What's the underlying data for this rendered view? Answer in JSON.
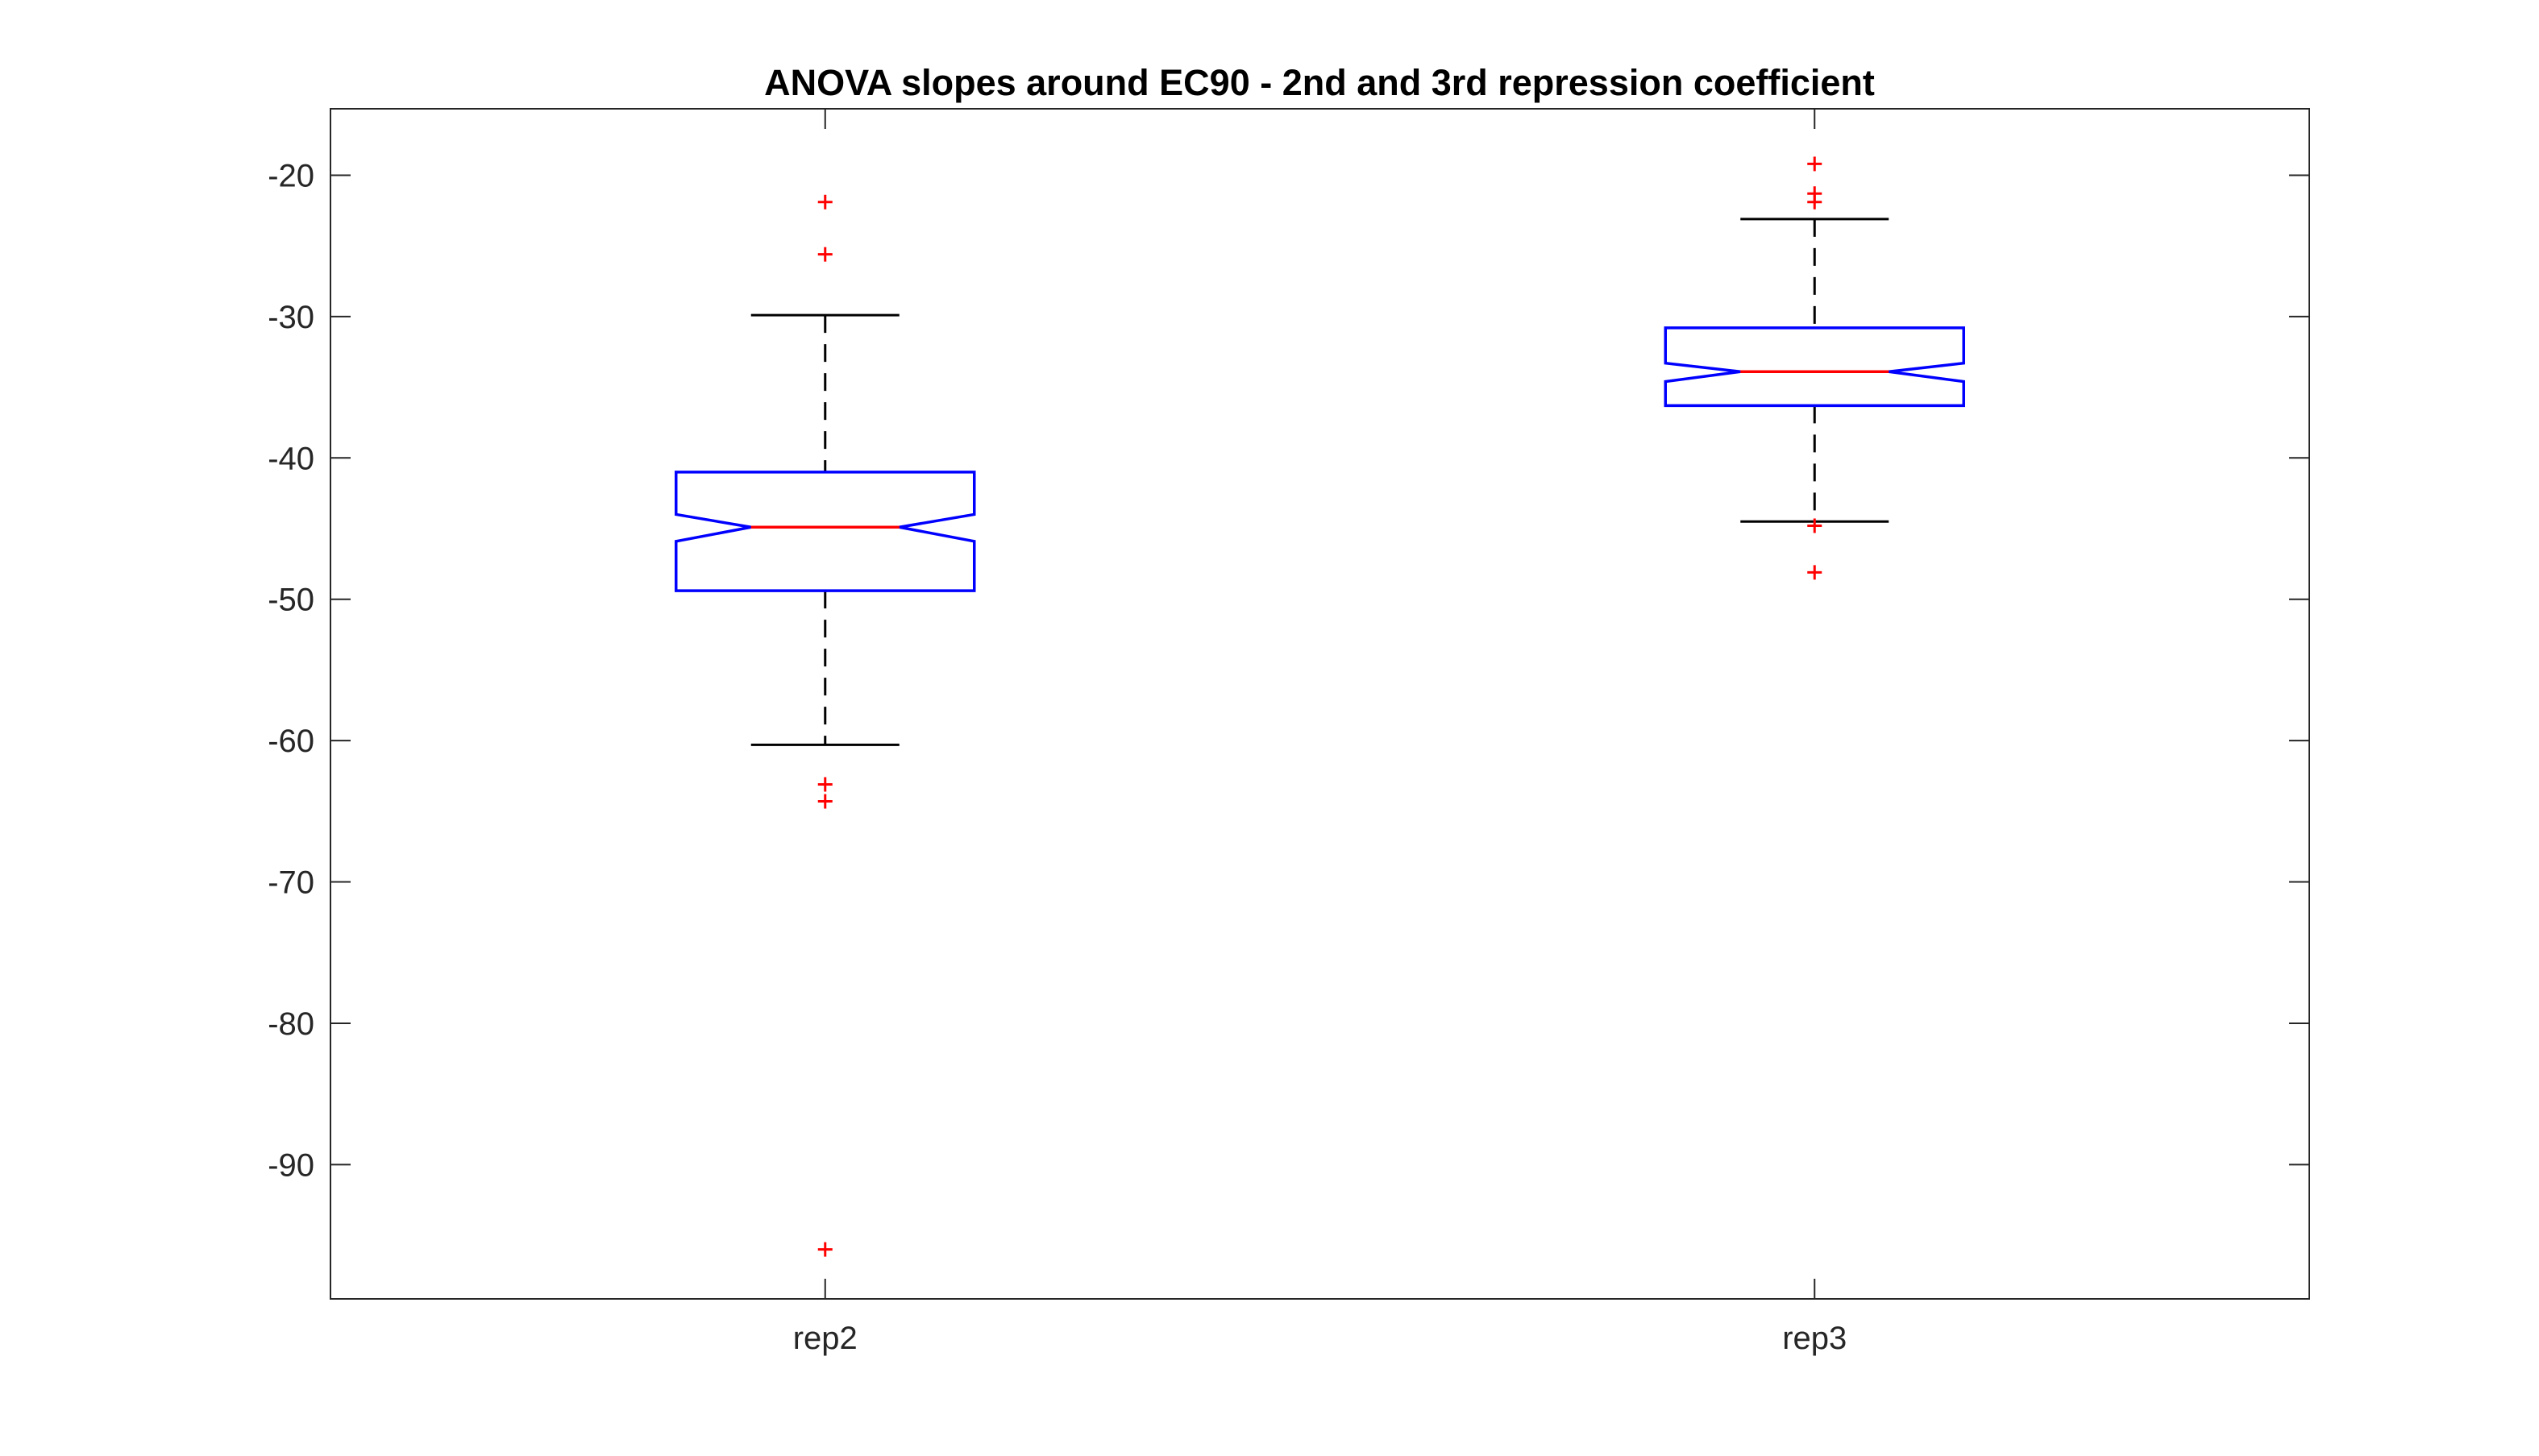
{
  "chart_data": {
    "type": "boxplot",
    "title": "ANOVA slopes around EC90 - 2nd and 3rd repression coefficient",
    "xlabel": "",
    "ylabel": "",
    "ylim": [
      -99.5,
      -15.3
    ],
    "yticks": [
      -20,
      -30,
      -40,
      -50,
      -60,
      -70,
      -80,
      -90
    ],
    "ytick_labels": [
      "-20",
      "-30",
      "-40",
      "-50",
      "-60",
      "-70",
      "-80",
      "-90"
    ],
    "categories": [
      "rep2",
      "rep3"
    ],
    "notched": true,
    "boxes": [
      {
        "label": "rep2",
        "whisker_high": -29.9,
        "q3": -41.0,
        "notch_high": -44.0,
        "median": -44.9,
        "notch_low": -45.9,
        "q1": -49.4,
        "whisker_low": -60.3,
        "outliers": [
          -21.9,
          -25.6,
          -63.1,
          -64.3,
          -96.0
        ]
      },
      {
        "label": "rep3",
        "whisker_high": -23.1,
        "q3": -30.8,
        "notch_high": -33.3,
        "median": -33.9,
        "notch_low": -34.6,
        "q1": -36.3,
        "whisker_low": -44.5,
        "outliers": [
          -19.2,
          -21.3,
          -21.9,
          -44.8,
          -48.1
        ]
      }
    ],
    "colors": {
      "box": "#0000ff",
      "median": "#ff0000",
      "whisker": "#000000",
      "outlier": "#ff0000",
      "axes": "#262626"
    },
    "grid": false
  }
}
